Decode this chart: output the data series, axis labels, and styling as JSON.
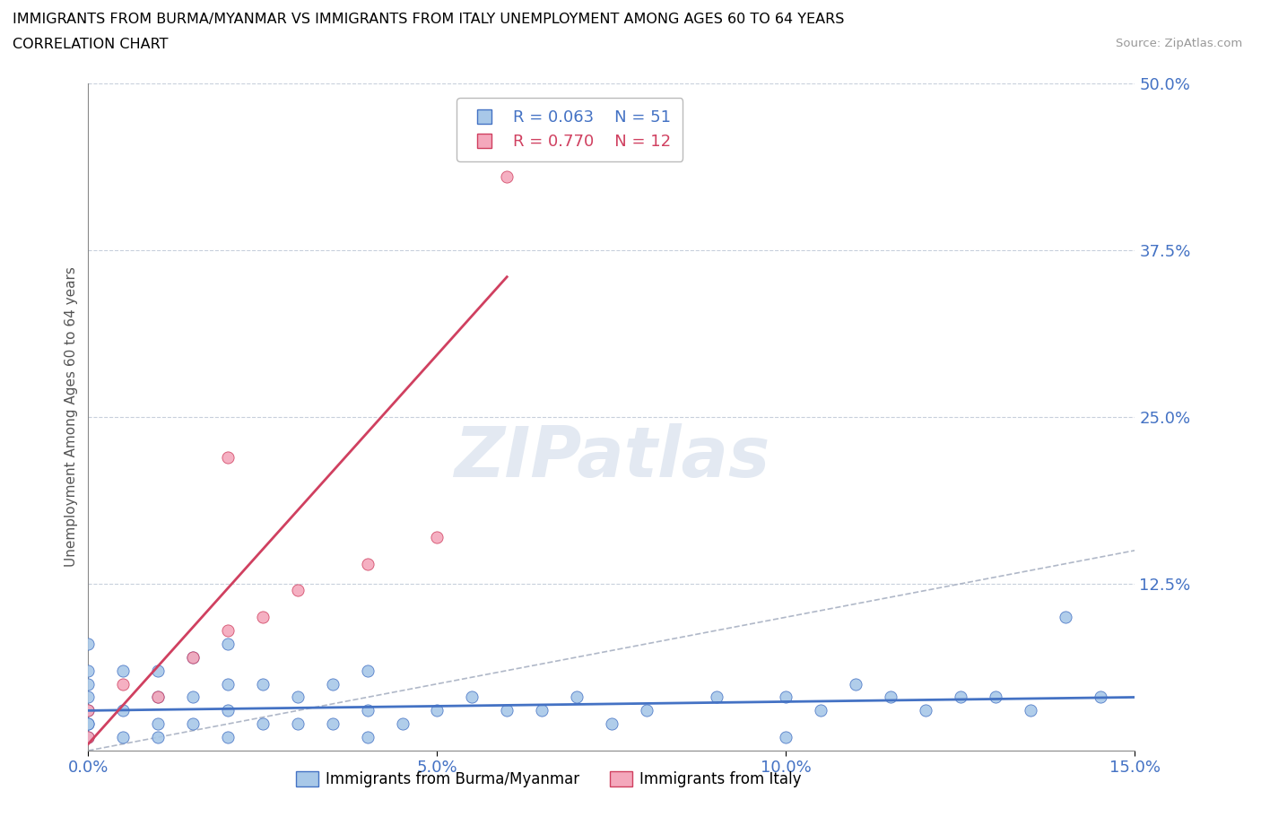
{
  "title_line1": "IMMIGRANTS FROM BURMA/MYANMAR VS IMMIGRANTS FROM ITALY UNEMPLOYMENT AMONG AGES 60 TO 64 YEARS",
  "title_line2": "CORRELATION CHART",
  "source_text": "Source: ZipAtlas.com",
  "ylabel": "Unemployment Among Ages 60 to 64 years",
  "xlim": [
    0.0,
    0.15
  ],
  "ylim": [
    0.0,
    0.5
  ],
  "xticks": [
    0.0,
    0.05,
    0.1,
    0.15
  ],
  "xticklabels": [
    "0.0%",
    "5.0%",
    "10.0%",
    "15.0%"
  ],
  "yticks": [
    0.0,
    0.125,
    0.25,
    0.375,
    0.5
  ],
  "yticklabels": [
    "",
    "12.5%",
    "25.0%",
    "37.5%",
    "50.0%"
  ],
  "legend_r1": "R = 0.063",
  "legend_n1": "N = 51",
  "legend_r2": "R = 0.770",
  "legend_n2": "N = 12",
  "color_burma": "#a8c8e8",
  "color_italy": "#f4a8bc",
  "color_trendline_burma": "#4472c4",
  "color_trendline_italy": "#d04060",
  "color_refline": "#b0b8c8",
  "color_gridline": "#c8d0dc",
  "color_ytick": "#4472c4",
  "color_xtick": "#4472c4",
  "watermark_text": "ZIPatlas",
  "burma_x": [
    0.0,
    0.0,
    0.0,
    0.0,
    0.0,
    0.0,
    0.0,
    0.0,
    0.005,
    0.005,
    0.005,
    0.01,
    0.01,
    0.01,
    0.01,
    0.015,
    0.015,
    0.015,
    0.02,
    0.02,
    0.02,
    0.02,
    0.025,
    0.025,
    0.03,
    0.03,
    0.035,
    0.035,
    0.04,
    0.04,
    0.04,
    0.045,
    0.05,
    0.055,
    0.06,
    0.065,
    0.07,
    0.075,
    0.08,
    0.09,
    0.1,
    0.1,
    0.105,
    0.11,
    0.115,
    0.12,
    0.125,
    0.13,
    0.135,
    0.14,
    0.145
  ],
  "burma_y": [
    0.01,
    0.02,
    0.02,
    0.03,
    0.04,
    0.05,
    0.06,
    0.08,
    0.01,
    0.03,
    0.06,
    0.01,
    0.02,
    0.04,
    0.06,
    0.02,
    0.04,
    0.07,
    0.01,
    0.03,
    0.05,
    0.08,
    0.02,
    0.05,
    0.02,
    0.04,
    0.02,
    0.05,
    0.01,
    0.03,
    0.06,
    0.02,
    0.03,
    0.04,
    0.03,
    0.03,
    0.04,
    0.02,
    0.03,
    0.04,
    0.01,
    0.04,
    0.03,
    0.05,
    0.04,
    0.03,
    0.04,
    0.04,
    0.03,
    0.1,
    0.04
  ],
  "italy_x": [
    0.0,
    0.0,
    0.005,
    0.01,
    0.015,
    0.02,
    0.02,
    0.025,
    0.03,
    0.04,
    0.05,
    0.06
  ],
  "italy_y": [
    0.01,
    0.03,
    0.05,
    0.04,
    0.07,
    0.09,
    0.22,
    0.1,
    0.12,
    0.14,
    0.16,
    0.43
  ],
  "burma_trendline_x": [
    0.0,
    0.15
  ],
  "burma_trendline_y": [
    0.03,
    0.04
  ],
  "italy_trendline_x": [
    0.0,
    0.06
  ],
  "italy_trendline_y": [
    0.005,
    0.355
  ]
}
